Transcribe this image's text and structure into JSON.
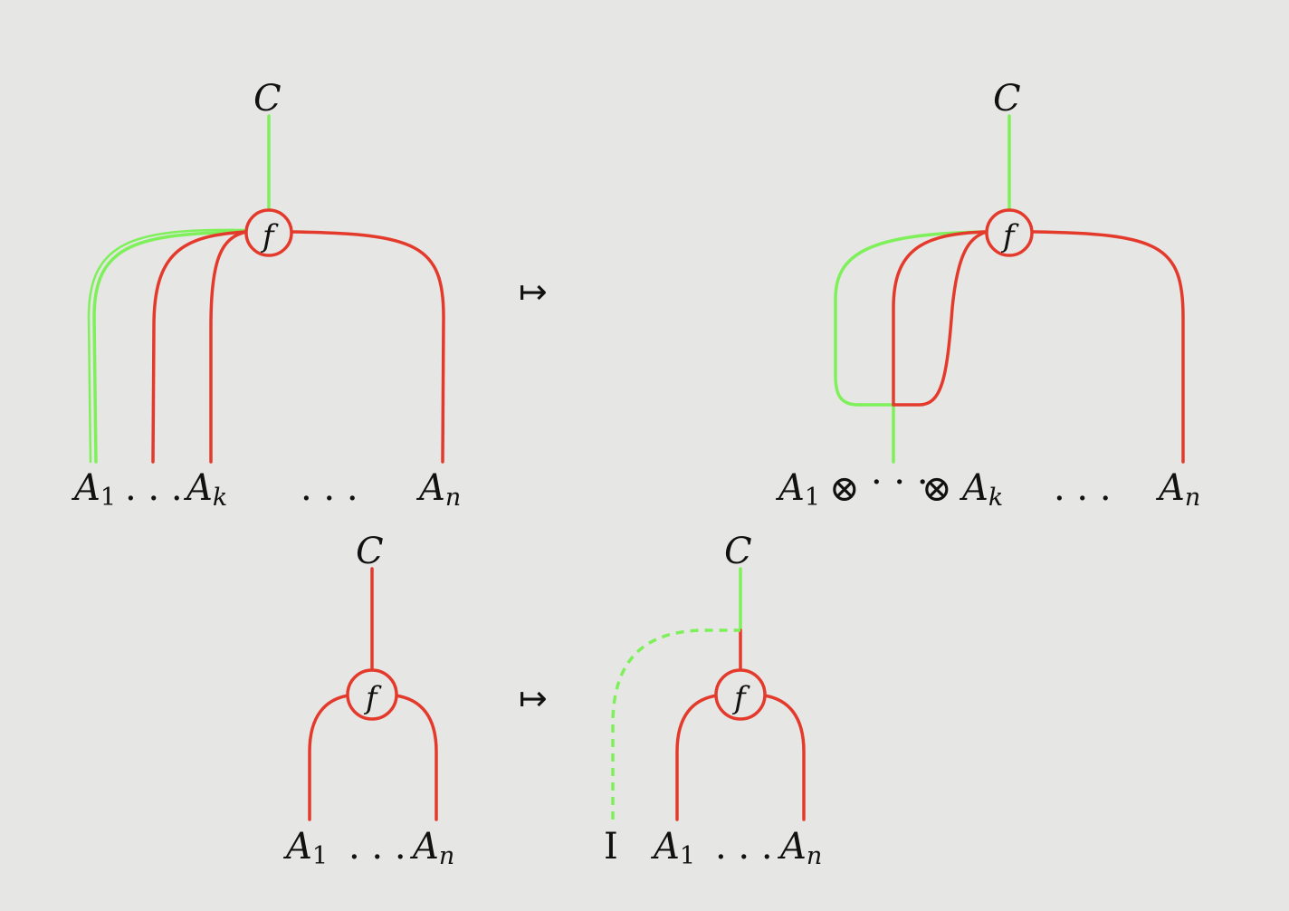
{
  "colors": {
    "background": "#e6e6e4",
    "red_wire": "#e33a2c",
    "green_wire": "#7ef15a",
    "text": "#111111"
  },
  "symbols": {
    "mapsto": "↦",
    "otimes": "⊗",
    "cdots": "· · ·",
    "ldots": ". . ."
  },
  "top_left": {
    "output": "C",
    "node": "f",
    "A": "A",
    "sub_1": "1",
    "sub_k": "k",
    "sub_n": "n",
    "dots": ". . ."
  },
  "top_right": {
    "output": "C",
    "node": "f",
    "A": "A",
    "sub_1": "1",
    "sub_k": "k",
    "sub_n": "n",
    "dots": ". . ."
  },
  "bottom_left": {
    "output": "C",
    "node": "f",
    "A": "A",
    "sub_1": "1",
    "sub_n": "n",
    "dots": ". . ."
  },
  "bottom_right": {
    "output": "C",
    "node": "f",
    "unit": "I",
    "A": "A",
    "sub_1": "1",
    "sub_n": "n",
    "dots": ". . ."
  }
}
